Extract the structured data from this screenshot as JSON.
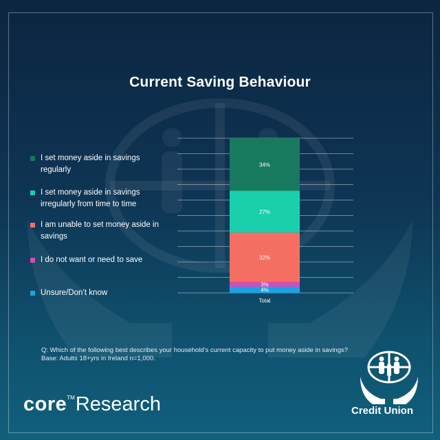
{
  "chart_data": {
    "type": "bar",
    "stacked": true,
    "title": "Current Saving Behaviour",
    "categories": [
      "Total"
    ],
    "series": [
      {
        "name": "Unsure/Don’t  know",
        "values": [
          4
        ],
        "label": "4%",
        "color": "#1ba3e3"
      },
      {
        "name": "I do not want or need to save",
        "values": [
          3
        ],
        "label": "3%",
        "color": "#d94bb6"
      },
      {
        "name": "I am unable to set money aside in savings",
        "values": [
          32
        ],
        "label": "32%",
        "color": "#f46f62"
      },
      {
        "name": "I set money aside in savings irregularly from time to time",
        "values": [
          27
        ],
        "label": "27%",
        "color": "#19cfac"
      },
      {
        "name": "I set money aside in savings regularly",
        "values": [
          34
        ],
        "label": "34%",
        "color": "#177a5f"
      }
    ],
    "ylim": [
      0,
      100
    ],
    "grid": true,
    "legend_position": "left"
  },
  "legend": [
    {
      "lines": [
        "I set money aside in savings",
        "regularly"
      ],
      "color": "#177a5f"
    },
    {
      "lines": [
        "I set money aside in savings",
        "irregularly from time to time"
      ],
      "color": "#19cfac"
    },
    {
      "lines": [
        "I am unable to set money aside in",
        "savings"
      ],
      "color": "#f46f62"
    },
    {
      "lines": [
        "I do not want or need to save"
      ],
      "color": "#d94bb6"
    },
    {
      "lines": [
        "Unsure/Don’t  know"
      ],
      "color": "#1ba3e3"
    }
  ],
  "question": {
    "line1": "Q: Which of the following best describes your household’s current capacity to put money aside in savings?",
    "line2": "Base:  Adults 18+yrs  in Ireland n=1,000."
  },
  "branding": {
    "core": "core",
    "tm": "TM",
    "research": "Research",
    "credit_union": "Credit Union"
  }
}
